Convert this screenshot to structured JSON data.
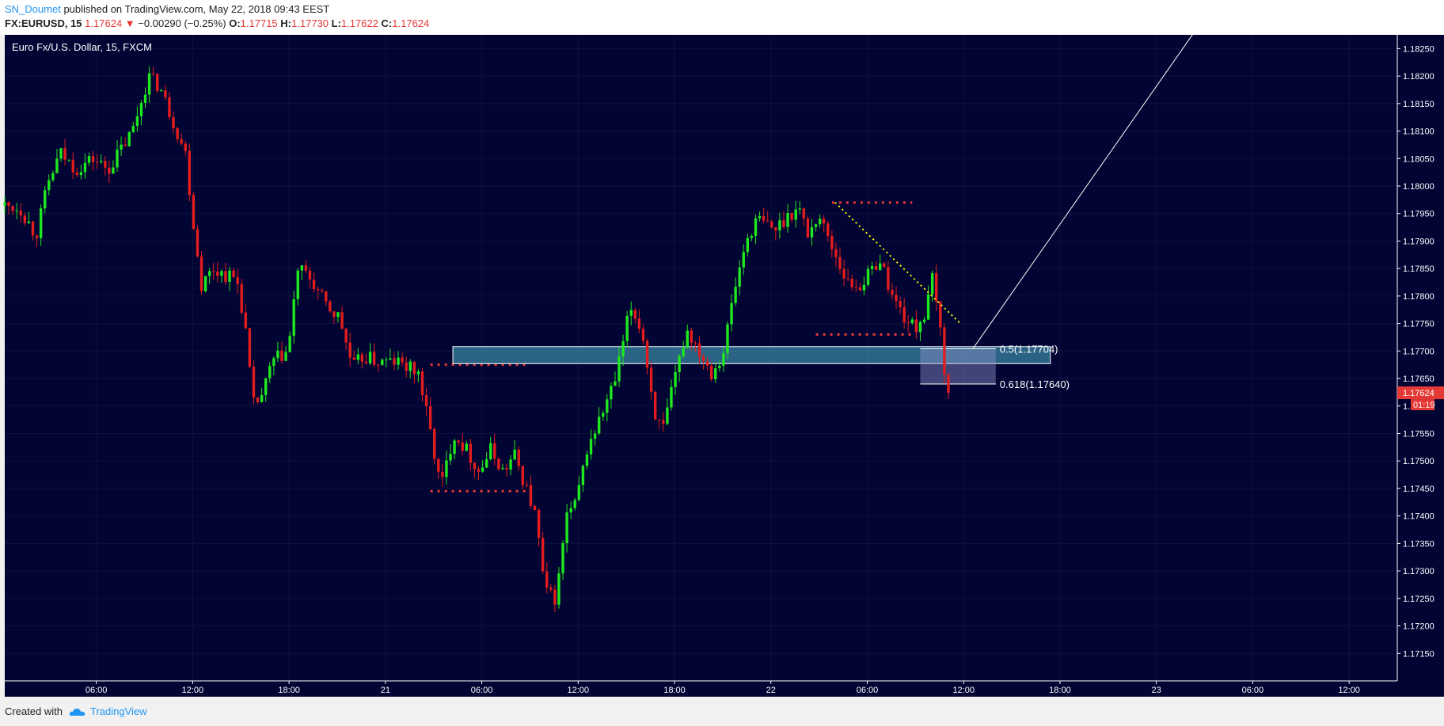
{
  "header": {
    "author": "SN_Doumet",
    "published_text": "published on TradingView.com, May 22, 2018 09:43 EEST",
    "symbol": "FX:EURUSD, 15",
    "last": "1.17624",
    "change": "−0.00290 (−0.25%)",
    "ohlc": [
      {
        "label": "O:",
        "value": "1.17715"
      },
      {
        "label": "H:",
        "value": "1.17730"
      },
      {
        "label": "L:",
        "value": "1.17622"
      },
      {
        "label": "C:",
        "value": "1.17624"
      }
    ]
  },
  "footer": {
    "created_with": "Created with",
    "brand": "TradingView"
  },
  "colors": {
    "background": "#020433",
    "up": "#1ee81e",
    "down": "#e31d1d",
    "grid": "#ffffff",
    "zone": "#4fb3c9",
    "marker": "#e53935",
    "trend": "#ffff00"
  },
  "chart_data": {
    "type": "candlestick",
    "title": "Euro Fx/U.S. Dollar, 15, FXCM",
    "ylim": [
      1.171,
      1.183
    ],
    "y_ticks": [
      "1.18250",
      "1.18200",
      "1.18150",
      "1.18100",
      "1.18050",
      "1.18000",
      "1.17950",
      "1.17900",
      "1.17850",
      "1.17800",
      "1.17750",
      "1.17700",
      "1.17650",
      "1.17600",
      "1.17550",
      "1.17500",
      "1.17450",
      "1.17400",
      "1.17350",
      "1.17300",
      "1.17250",
      "1.17200",
      "1.17150"
    ],
    "x_ticks": [
      {
        "t": 6,
        "label": "06:00"
      },
      {
        "t": 12,
        "label": "12:00"
      },
      {
        "t": 18,
        "label": "18:00"
      },
      {
        "t": 24,
        "label": "21"
      },
      {
        "t": 30,
        "label": "06:00"
      },
      {
        "t": 36,
        "label": "12:00"
      },
      {
        "t": 42,
        "label": "18:00"
      },
      {
        "t": 48,
        "label": "22"
      },
      {
        "t": 54,
        "label": "06:00"
      },
      {
        "t": 60,
        "label": "12:00"
      },
      {
        "t": 66,
        "label": "18:00"
      },
      {
        "t": 72,
        "label": "23"
      },
      {
        "t": 78,
        "label": "06:00"
      },
      {
        "t": 84,
        "label": "12:00"
      }
    ],
    "x_range_hours": [
      0.3,
      87.0
    ],
    "path": [
      [
        0.3,
        1.17965
      ],
      [
        1.5,
        1.1796
      ],
      [
        2.5,
        1.1791
      ],
      [
        3.2,
        1.18
      ],
      [
        4.0,
        1.1806
      ],
      [
        5.0,
        1.1803
      ],
      [
        6.0,
        1.1805
      ],
      [
        7.0,
        1.1803
      ],
      [
        8.5,
        1.181
      ],
      [
        9.5,
        1.182
      ],
      [
        10.2,
        1.1818
      ],
      [
        11.0,
        1.1812
      ],
      [
        11.8,
        1.1806
      ],
      [
        12.3,
        1.1793
      ],
      [
        12.8,
        1.1782
      ],
      [
        13.5,
        1.1785
      ],
      [
        14.2,
        1.1784
      ],
      [
        15.0,
        1.1783
      ],
      [
        15.5,
        1.1775
      ],
      [
        16.0,
        1.176
      ],
      [
        16.6,
        1.1762
      ],
      [
        17.2,
        1.1768
      ],
      [
        18.2,
        1.177
      ],
      [
        18.8,
        1.1785
      ],
      [
        19.6,
        1.1783
      ],
      [
        20.6,
        1.1778
      ],
      [
        21.4,
        1.1776
      ],
      [
        22.2,
        1.1767
      ],
      [
        22.9,
        1.1769
      ],
      [
        23.8,
        1.1768
      ],
      [
        25.0,
        1.1768
      ],
      [
        26.3,
        1.1766
      ],
      [
        27.0,
        1.1756
      ],
      [
        27.7,
        1.1745
      ],
      [
        28.5,
        1.1755
      ],
      [
        29.3,
        1.1752
      ],
      [
        30.1,
        1.1748
      ],
      [
        30.8,
        1.1752
      ],
      [
        31.6,
        1.1748
      ],
      [
        32.3,
        1.1751
      ],
      [
        32.9,
        1.1746
      ],
      [
        33.6,
        1.174
      ],
      [
        34.2,
        1.1726
      ],
      [
        34.9,
        1.1725
      ],
      [
        35.5,
        1.174
      ],
      [
        36.1,
        1.1742
      ],
      [
        36.8,
        1.1752
      ],
      [
        37.8,
        1.1759
      ],
      [
        38.6,
        1.1765
      ],
      [
        39.5,
        1.1778
      ],
      [
        40.2,
        1.1774
      ],
      [
        41.0,
        1.1759
      ],
      [
        41.5,
        1.1755
      ],
      [
        42.2,
        1.1764
      ],
      [
        43.0,
        1.1774
      ],
      [
        43.8,
        1.177
      ],
      [
        44.6,
        1.1766
      ],
      [
        45.3,
        1.177
      ],
      [
        45.9,
        1.178
      ],
      [
        46.7,
        1.179
      ],
      [
        47.4,
        1.1794
      ],
      [
        48.5,
        1.1792
      ],
      [
        49.4,
        1.1795
      ],
      [
        50.0,
        1.1796
      ],
      [
        50.6,
        1.1791
      ],
      [
        51.2,
        1.1795
      ],
      [
        51.9,
        1.179
      ],
      [
        52.5,
        1.1786
      ],
      [
        53.1,
        1.1782
      ],
      [
        53.8,
        1.1782
      ],
      [
        54.4,
        1.1784
      ],
      [
        55.0,
        1.1787
      ],
      [
        55.8,
        1.178
      ],
      [
        56.6,
        1.1776
      ],
      [
        57.2,
        1.1774
      ],
      [
        57.9,
        1.1777
      ],
      [
        58.3,
        1.1783
      ],
      [
        58.8,
        1.1774
      ],
      [
        59.2,
        1.17624
      ]
    ],
    "lines": [
      {
        "type": "trend",
        "style": "dotted",
        "color": "#ffff00",
        "points": [
          [
            52.0,
            1.1797
          ],
          [
            59.8,
            1.1775
          ]
        ]
      },
      {
        "type": "projection",
        "style": "solid",
        "color": "#ffffff",
        "points": [
          [
            60.6,
            1.17705
          ],
          [
            74.6,
            1.1829
          ]
        ]
      }
    ],
    "levels": [
      {
        "style": "dotted",
        "color": "#e53935",
        "x": [
          51.8,
          56.8
        ],
        "y": 1.1797
      },
      {
        "style": "dotted",
        "color": "#e53935",
        "x": [
          50.8,
          56.8
        ],
        "y": 1.1773
      },
      {
        "style": "dotted",
        "color": "#e53935",
        "x": [
          26.8,
          32.8
        ],
        "y": 1.17675
      },
      {
        "style": "dotted",
        "color": "#e53935",
        "x": [
          26.8,
          32.8
        ],
        "y": 1.17445
      }
    ],
    "zones": [
      {
        "color": "#4fb3c9",
        "x": [
          28.2,
          65.4
        ],
        "y": [
          1.17677,
          1.17708
        ]
      }
    ],
    "fibonacci": {
      "x": [
        57.3,
        62.0
      ],
      "levels": [
        {
          "ratio": "0.5",
          "price": 1.17704,
          "label": "0.5(1.17704)"
        },
        {
          "ratio": "0.618",
          "price": 1.1764,
          "label": "0.618(1.17640)"
        }
      ]
    },
    "price_label": {
      "price": 1.17624,
      "text": "1.17624",
      "countdown": "01:19"
    }
  }
}
